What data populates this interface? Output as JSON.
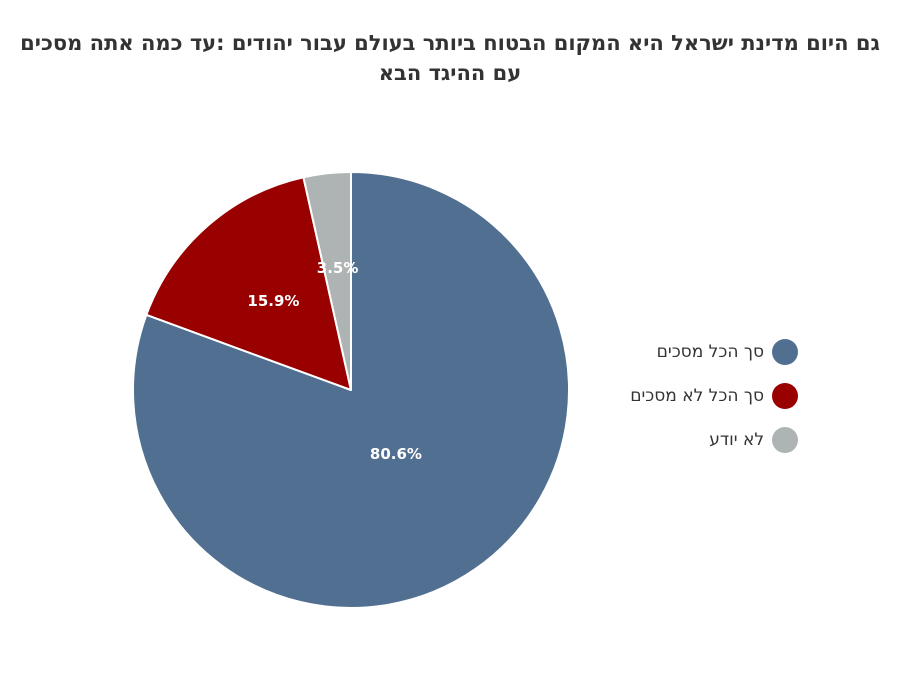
{
  "chart_data": {
    "type": "pie",
    "title": "גם היום מדינת ישראל היא המקום הבטוח ביותר בעולם עבור יהודים :עד כמה אתה מסכים עם ההיגד הבא",
    "categories": [
      "סך הכל מסכים",
      "סך הכל לא מסכים",
      "לא יודע"
    ],
    "values": [
      80.6,
      15.9,
      3.5
    ],
    "value_labels": [
      "80.6%",
      "15.9%",
      "3.5%"
    ],
    "colors": [
      "#516f91",
      "#990000",
      "#aeb3b3"
    ],
    "legend_position": "right"
  }
}
